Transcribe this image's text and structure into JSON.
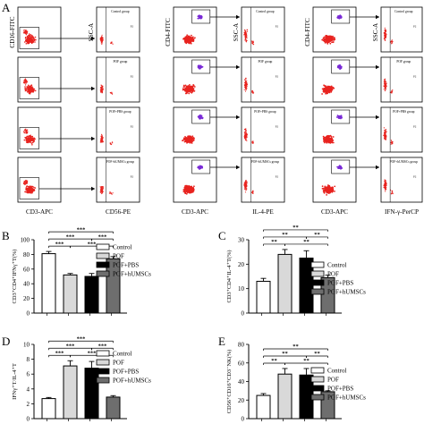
{
  "flow": {
    "panel_a_letter": "A",
    "group_labels": [
      "Control group",
      "POF group",
      "POF+PBS group",
      "POF+hUMSCs group"
    ],
    "q_label": "P2",
    "col1": {
      "y_axis": "CD16-FITC",
      "x_axis": "CD3-APC"
    },
    "col2": {
      "y_axis": "SSC-A",
      "x_axis": "CD56-PE"
    },
    "col3": {
      "y_axis": "CD4-FITC",
      "x_axis": "CD3-APC"
    },
    "col4": {
      "y_axis": "SSC-A",
      "x_axis": "IL-4-PE"
    },
    "col5": {
      "y_axis": "CD4-FITC",
      "x_axis": "CD3-APC"
    },
    "col6": {
      "y_axis": "SSC-A",
      "x_axis": "IFN-γ-PerCP"
    }
  },
  "legend": [
    "Control",
    "POF",
    "POF+PBS",
    "POF+hUMSCs"
  ],
  "colors": {
    "control": "#ffffff",
    "pof": "#d9d9d9",
    "pof_pbs": "#000000",
    "pof_humscs": "#6e6e6e",
    "scatter": "#e8231f",
    "gate": "#7a2bd6"
  },
  "chart_data": [
    {
      "letter": "B",
      "type": "bar",
      "categories": [
        "Control",
        "POF",
        "POF+PBS",
        "POF+hUMSCs"
      ],
      "values": [
        81,
        52,
        50,
        74
      ],
      "errors": [
        3,
        2,
        4,
        3
      ],
      "ylim": [
        0,
        100
      ],
      "yticks": [
        "0",
        "20",
        "40",
        "60",
        "80",
        "100"
      ],
      "ylabel": "CD3⁺CD4⁺IFNγ⁺T(%)",
      "significance": "***"
    },
    {
      "letter": "C",
      "type": "bar",
      "categories": [
        "Control",
        "POF",
        "POF+PBS",
        "POF+hUMSCs"
      ],
      "values": [
        13,
        24,
        22.5,
        14.5
      ],
      "errors": [
        1.2,
        2,
        3,
        1
      ],
      "ylim": [
        0,
        30
      ],
      "yticks": [
        "0",
        "10",
        "20",
        "30"
      ],
      "ylabel": "CD3⁺CD4⁺IL-4⁺T(%)",
      "significance": "**"
    },
    {
      "letter": "D",
      "type": "bar",
      "categories": [
        "Control",
        "POF",
        "POF+PBS",
        "POF+hUMSCs"
      ],
      "values": [
        2.7,
        7.1,
        6.8,
        2.9
      ],
      "errors": [
        0.15,
        0.7,
        0.9,
        0.2
      ],
      "ylim": [
        0,
        10
      ],
      "yticks": [
        "0",
        "2",
        "4",
        "6",
        "8",
        "10"
      ],
      "ylabel": "IFNγ⁺T/IL-4⁺T",
      "significance": "***"
    },
    {
      "letter": "E",
      "type": "bar",
      "categories": [
        "Control",
        "POF",
        "POF+PBS",
        "POF+hUMSCs"
      ],
      "values": [
        25,
        48,
        47,
        29
      ],
      "errors": [
        2,
        6,
        7,
        1
      ],
      "ylim": [
        0,
        80
      ],
      "yticks": [
        "0",
        "20",
        "40",
        "60",
        "80"
      ],
      "ylabel": "CD56⁺CD16⁺CD3⁻NK(%)",
      "significance": "**"
    }
  ]
}
